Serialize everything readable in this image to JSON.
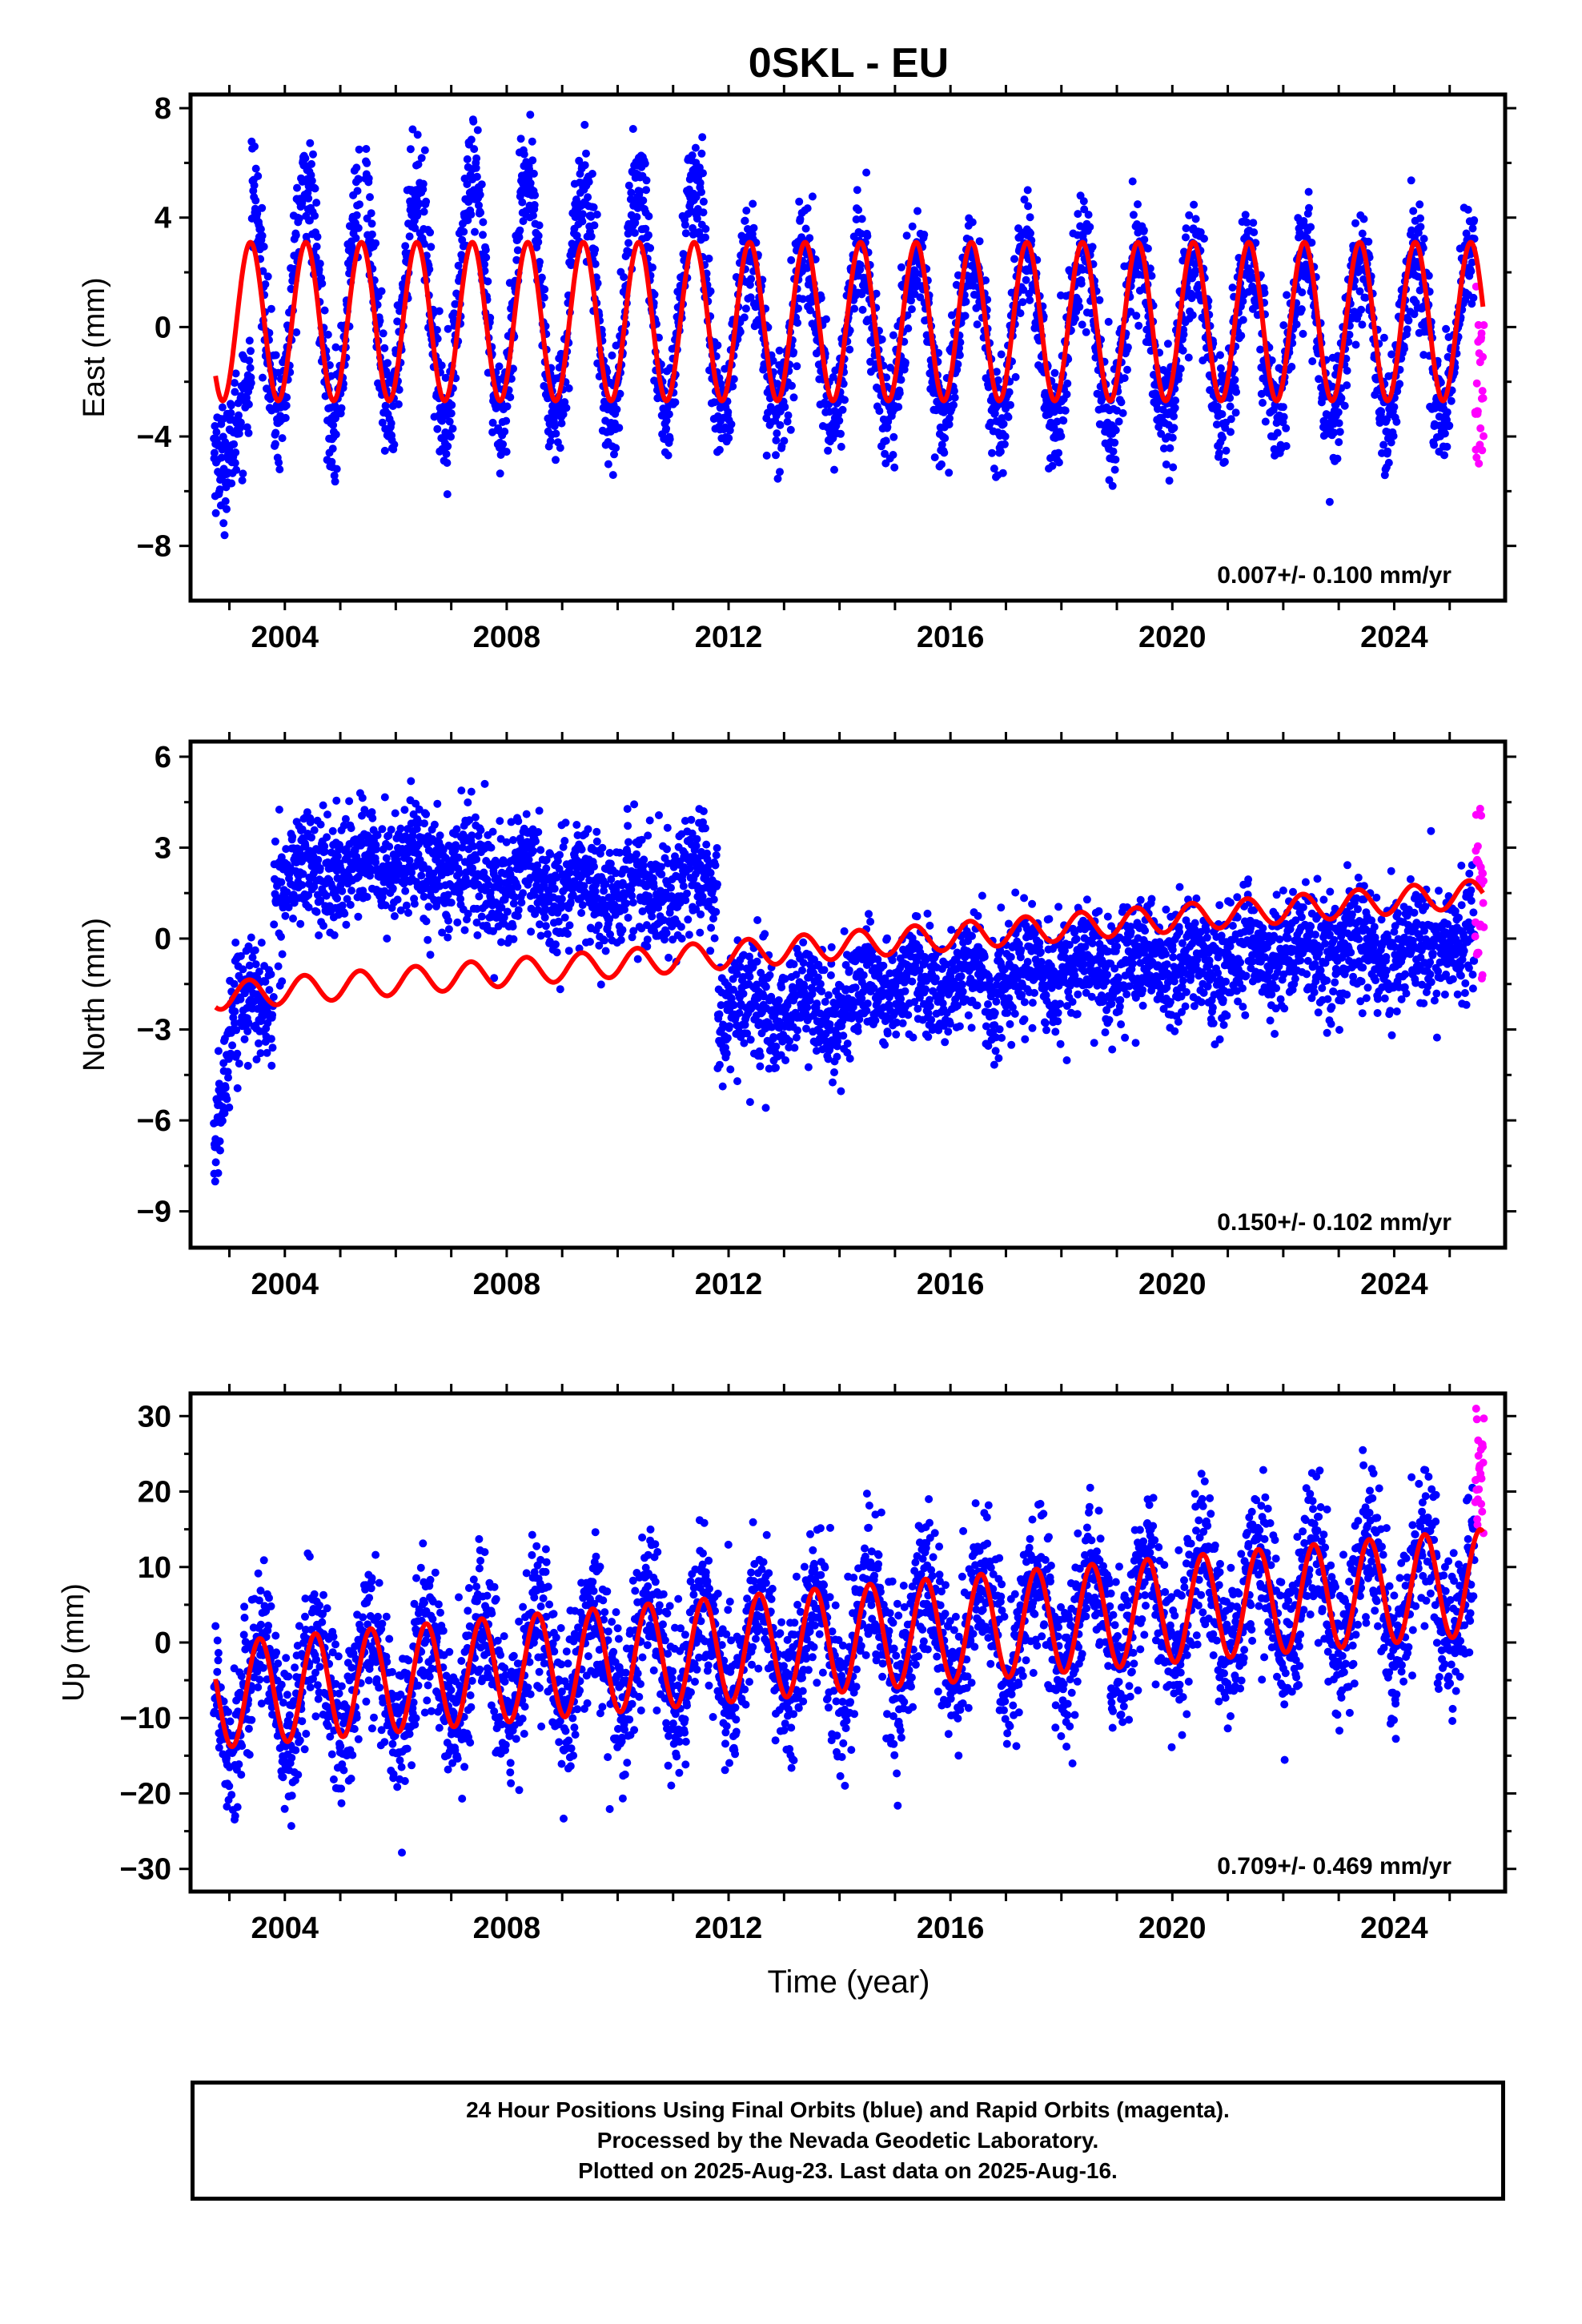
{
  "title": "0SKL - EU",
  "chart_data": [
    {
      "type": "scatter",
      "component": "East",
      "ylabel": "East (mm)",
      "xlabel": "",
      "xlim": [
        2002.3,
        2026.0
      ],
      "ylim": [
        -10,
        8.5
      ],
      "x_ticks": [
        2004,
        2008,
        2012,
        2016,
        2020,
        2024
      ],
      "y_ticks": [
        -8,
        -4,
        0,
        4,
        8
      ],
      "rate_label": "0.007+/- 0.100 mm/yr",
      "colors": {
        "final": "#0000ff",
        "rapid": "#ff00ff",
        "model": "#ff0000"
      },
      "model": {
        "offset_before_2011_8": 0.2,
        "offset_after_2011_8": 0.2,
        "trend": 0.007,
        "annual_amplitude": 2.9,
        "annual_phase_peak_year_fraction": 0.38,
        "start": 2002.75,
        "end": 2025.6
      }
    },
    {
      "type": "scatter",
      "component": "North",
      "ylabel": "North (mm)",
      "xlabel": "",
      "xlim": [
        2002.3,
        2026.0
      ],
      "ylim": [
        -10.2,
        6.5
      ],
      "x_ticks": [
        2004,
        2008,
        2012,
        2016,
        2020,
        2024
      ],
      "y_ticks": [
        -9,
        -6,
        -3,
        0,
        3,
        6
      ],
      "rate_label": "0.150+/- 0.102 mm/yr",
      "colors": {
        "final": "#0000ff",
        "rapid": "#ff00ff",
        "model": "#ff0000"
      },
      "model": {
        "value_2002_75": -1.9,
        "value_2025_6": 1.5,
        "annual_amplitude": 0.45,
        "step_2011_8": 0.0,
        "start": 2002.75,
        "end": 2025.6
      }
    },
    {
      "type": "scatter",
      "component": "Up",
      "ylabel": "Up (mm)",
      "xlabel": "Time (year)",
      "xlim": [
        2002.3,
        2026.0
      ],
      "ylim": [
        -33,
        33
      ],
      "x_ticks": [
        2004,
        2008,
        2012,
        2016,
        2020,
        2024
      ],
      "y_ticks": [
        -30,
        -20,
        -10,
        0,
        10,
        20,
        30
      ],
      "rate_label": "0.709+/- 0.469 mm/yr",
      "colors": {
        "final": "#0000ff",
        "rapid": "#ff00ff",
        "model": "#ff0000"
      },
      "model": {
        "value_2002_75": -7.0,
        "value_2025_6": 8.0,
        "annual_amplitude": 7.0,
        "start": 2002.75,
        "end": 2025.6
      }
    }
  ],
  "caption": {
    "line1": "24 Hour Positions Using Final Orbits (blue) and Rapid Orbits (magenta).",
    "line2": "Processed by the Nevada Geodetic Laboratory.",
    "line3": "Plotted on 2025-Aug-23. Last data on 2025-Aug-16."
  }
}
